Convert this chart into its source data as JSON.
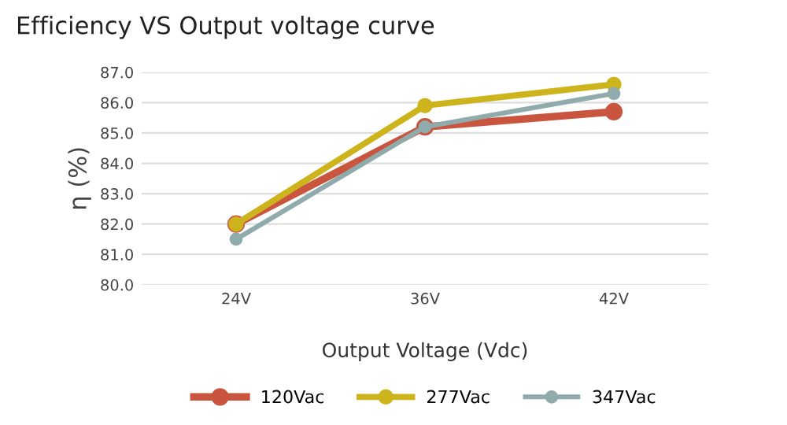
{
  "chart_data": {
    "type": "line",
    "title": "Efficiency VS Output voltage curve",
    "xlabel": "Output Voltage (Vdc)",
    "ylabel": "η (%)",
    "categories": [
      "24V",
      "36V",
      "42V"
    ],
    "series": [
      {
        "name": "120Vac",
        "color": "#c9553f",
        "values": [
          82.0,
          85.2,
          85.7
        ]
      },
      {
        "name": "277Vac",
        "color": "#cdb31c",
        "values": [
          82.0,
          85.9,
          86.6
        ]
      },
      {
        "name": "347Vac",
        "color": "#8fabab",
        "values": [
          81.5,
          85.2,
          86.3
        ]
      }
    ],
    "ylim": [
      80,
      87
    ],
    "yticks": [
      {
        "value": 80,
        "label": "80.0"
      },
      {
        "value": 81,
        "label": "81.0"
      },
      {
        "value": 82,
        "label": "82.0"
      },
      {
        "value": 83,
        "label": "83.0"
      },
      {
        "value": 84,
        "label": "84.0"
      },
      {
        "value": 85,
        "label": "85.0"
      },
      {
        "value": 86,
        "label": "86.0"
      },
      {
        "value": 87,
        "label": "87.0"
      }
    ],
    "grid": "y",
    "legend": "bottom",
    "marker": "circle",
    "line_style": "solid"
  }
}
